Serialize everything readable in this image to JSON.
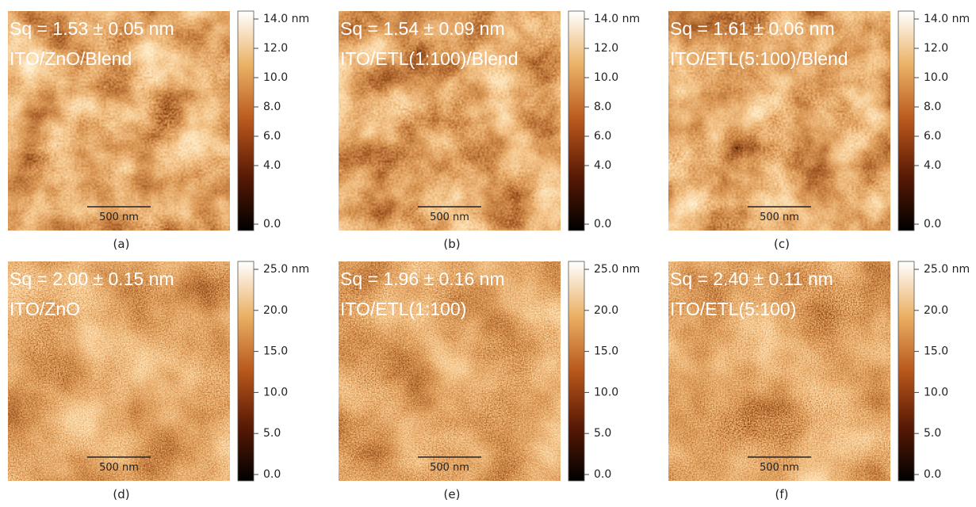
{
  "panels": [
    {
      "label": "(a)",
      "sq": "Sq = 1.53 ± 0.05 nm",
      "sample": "ITO/ZnO/Blend",
      "scale_bar": "500 nm",
      "colorbar": [
        "14.0 nm",
        "12.0",
        "10.0",
        "8.0",
        "6.0",
        "4.0",
        "0.0"
      ]
    },
    {
      "label": "(b)",
      "sq": "Sq = 1.54 ± 0.09 nm",
      "sample": "ITO/ETL(1:100)/Blend",
      "scale_bar": "500 nm",
      "colorbar": [
        "14.0 nm",
        "12.0",
        "10.0",
        "8.0",
        "6.0",
        "4.0",
        "0.0"
      ]
    },
    {
      "label": "(c)",
      "sq": "Sq = 1.61 ± 0.06 nm",
      "sample": "ITO/ETL(5:100)/Blend",
      "scale_bar": "500 nm",
      "colorbar": [
        "14.0 nm",
        "12.0",
        "10.0",
        "8.0",
        "6.0",
        "4.0",
        "0.0"
      ]
    },
    {
      "label": "(d)",
      "sq": "Sq = 2.00 ± 0.15 nm",
      "sample": "ITO/ZnO",
      "scale_bar": "500 nm",
      "colorbar": [
        "25.0 nm",
        "20.0",
        "15.0",
        "10.0",
        "5.0",
        "0.0"
      ]
    },
    {
      "label": "(e)",
      "sq": "Sq = 1.96 ± 0.16 nm",
      "sample": "ITO/ETL(1:100)",
      "scale_bar": "500 nm",
      "colorbar": [
        "25.0 nm",
        "20.0",
        "15.0",
        "10.0",
        "5.0",
        "0.0"
      ]
    },
    {
      "label": "(f)",
      "sq": "Sq = 2.40 ± 0.11 nm",
      "sample": "ITO/ETL(5:100)",
      "scale_bar": "500 nm",
      "colorbar": [
        "25.0 nm",
        "20.0",
        "15.0",
        "10.0",
        "5.0",
        "0.0"
      ]
    }
  ]
}
